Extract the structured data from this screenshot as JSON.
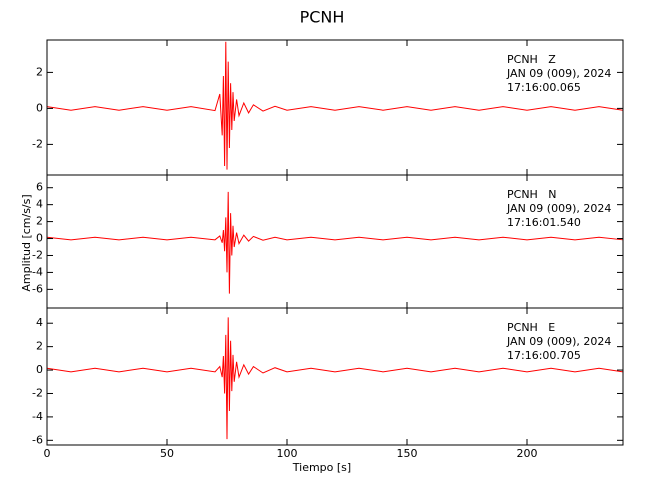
{
  "chart_data": [
    {
      "type": "line",
      "title": "PCNH",
      "color": "#ff0000",
      "annotations": [
        "PCNH   Z",
        "JAN 09 (009), 2024",
        "17:16:00.065"
      ],
      "x": [
        0,
        10,
        20,
        30,
        40,
        50,
        60,
        70,
        72,
        73,
        73.5,
        74,
        74.5,
        75,
        75.5,
        76,
        76.5,
        77,
        77.5,
        78,
        79,
        80,
        82,
        84,
        86,
        90,
        95,
        100,
        110,
        120,
        130,
        140,
        150,
        160,
        170,
        180,
        190,
        200,
        210,
        220,
        230,
        240
      ],
      "values": [
        0.1,
        -0.1,
        0.1,
        -0.1,
        0.1,
        -0.1,
        0.1,
        -0.12,
        0.8,
        -1.5,
        1.8,
        -3.2,
        3.7,
        -3.4,
        2.6,
        -2.2,
        1.4,
        -1.2,
        0.9,
        -0.7,
        0.5,
        -0.4,
        0.3,
        -0.25,
        0.2,
        -0.15,
        0.12,
        -0.1,
        0.1,
        -0.1,
        0.1,
        -0.1,
        0.1,
        -0.1,
        0.1,
        -0.1,
        0.1,
        -0.1,
        0.1,
        -0.1,
        0.1,
        -0.1
      ],
      "xlim": [
        0,
        240
      ],
      "ylim": [
        -3.7,
        3.8
      ],
      "yticks": [
        -2,
        0,
        2
      ]
    },
    {
      "type": "line",
      "ylabel": "Amplitud [cm/s/s]",
      "color": "#ff0000",
      "annotations": [
        "PCNH   N",
        "JAN 09 (009), 2024",
        "17:16:01.540"
      ],
      "x": [
        0,
        10,
        20,
        30,
        40,
        50,
        60,
        70,
        72,
        73,
        73.5,
        74,
        74.5,
        75,
        75.5,
        76,
        76.5,
        77,
        77.5,
        78,
        79,
        80,
        82,
        84,
        86,
        90,
        95,
        100,
        110,
        120,
        130,
        140,
        150,
        160,
        170,
        180,
        190,
        200,
        210,
        220,
        230,
        240
      ],
      "values": [
        0.15,
        -0.15,
        0.15,
        -0.15,
        0.15,
        -0.15,
        0.15,
        -0.15,
        0.3,
        -0.5,
        1.0,
        -1.5,
        2.5,
        -4.0,
        5.5,
        -6.5,
        3.0,
        -2.0,
        1.5,
        -1.0,
        0.7,
        -0.6,
        0.4,
        -0.3,
        0.25,
        -0.2,
        0.15,
        -0.15,
        0.15,
        -0.15,
        0.15,
        -0.15,
        0.15,
        -0.15,
        0.15,
        -0.15,
        0.15,
        -0.15,
        0.15,
        -0.15,
        0.15,
        -0.15
      ],
      "xlim": [
        0,
        240
      ],
      "ylim": [
        -8.2,
        7.5
      ],
      "yticks": [
        -6,
        -4,
        -2,
        0,
        2,
        4,
        6
      ]
    },
    {
      "type": "line",
      "xlabel": "Tiempo [s]",
      "color": "#ff0000",
      "annotations": [
        "PCNH   E",
        "JAN 09 (009), 2024",
        "17:16:00.705"
      ],
      "x": [
        0,
        10,
        20,
        30,
        40,
        50,
        60,
        70,
        72,
        73,
        73.5,
        74,
        74.5,
        75,
        75.5,
        76,
        76.5,
        77,
        77.5,
        78,
        79,
        80,
        82,
        84,
        86,
        90,
        95,
        100,
        110,
        120,
        130,
        140,
        150,
        160,
        170,
        180,
        190,
        200,
        210,
        220,
        230,
        240
      ],
      "values": [
        0.15,
        -0.15,
        0.15,
        -0.15,
        0.15,
        -0.15,
        0.15,
        -0.15,
        0.3,
        -0.6,
        1.2,
        -2.0,
        3.0,
        -5.9,
        4.5,
        -3.5,
        2.5,
        -1.8,
        1.3,
        -1.0,
        0.7,
        -0.6,
        0.45,
        -0.35,
        0.3,
        -0.25,
        0.2,
        -0.15,
        0.15,
        -0.15,
        0.15,
        -0.15,
        0.15,
        -0.15,
        0.15,
        -0.15,
        0.15,
        -0.15,
        0.15,
        -0.15,
        0.15,
        -0.15
      ],
      "xlim": [
        0,
        240
      ],
      "ylim": [
        -6.4,
        5.3
      ],
      "yticks": [
        -6,
        -4,
        -2,
        0,
        2,
        4
      ],
      "xticks": [
        0,
        50,
        100,
        150,
        200
      ]
    }
  ]
}
